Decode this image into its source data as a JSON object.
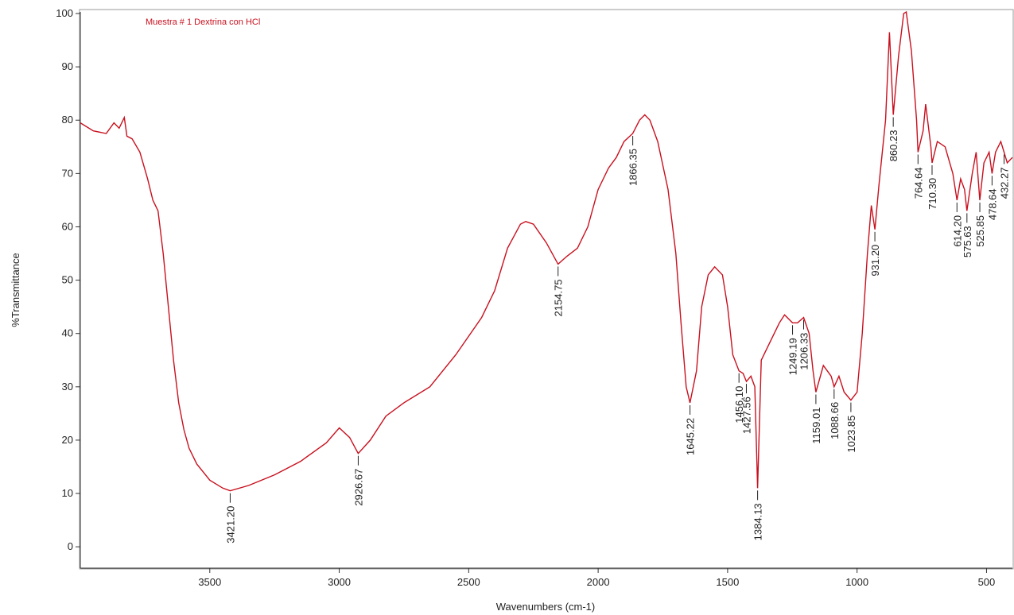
{
  "chart_data": {
    "type": "line",
    "xlabel": "Wavenumbers (cm-1)",
    "ylabel": "%Transmittance",
    "xlim": [
      4000,
      400
    ],
    "ylim": [
      -4,
      100.3
    ],
    "xticks": [
      3500,
      3000,
      2500,
      2000,
      1500,
      1000,
      500
    ],
    "yticks": [
      0,
      10,
      20,
      30,
      40,
      50,
      60,
      70,
      80,
      90,
      100
    ],
    "x": [
      4000,
      3950,
      3900,
      3870,
      3850,
      3830,
      3820,
      3800,
      3770,
      3740,
      3720,
      3700,
      3680,
      3660,
      3640,
      3620,
      3600,
      3580,
      3550,
      3500,
      3450,
      3421.2,
      3350,
      3250,
      3150,
      3050,
      3000,
      2960,
      2926.67,
      2880,
      2820,
      2750,
      2650,
      2550,
      2450,
      2400,
      2350,
      2300,
      2280,
      2250,
      2200,
      2154.75,
      2120,
      2080,
      2040,
      2000,
      1960,
      1930,
      1900,
      1866.35,
      1840,
      1820,
      1800,
      1770,
      1730,
      1700,
      1680,
      1660,
      1645.22,
      1620,
      1600,
      1575,
      1550,
      1520,
      1500,
      1480,
      1456.1,
      1440,
      1427.56,
      1410,
      1395,
      1384.13,
      1370,
      1340,
      1300,
      1280,
      1249.19,
      1230,
      1206.33,
      1185,
      1170,
      1159.01,
      1130,
      1100,
      1088.66,
      1070,
      1050,
      1023.85,
      1000,
      980,
      960,
      945,
      931.2,
      915,
      890,
      875,
      860.23,
      840,
      820,
      810,
      790,
      770,
      764.64,
      745,
      735,
      715,
      710.3,
      690,
      660,
      630,
      614.2,
      600,
      585,
      575.63,
      555,
      540,
      525.85,
      510,
      490,
      478.64,
      465,
      445,
      432.27,
      420,
      400
    ],
    "series": [
      {
        "name": "Muestra # 1 Dextrina con HCl",
        "color": "#c8101e",
        "values": [
          79.5,
          78,
          77.5,
          79.5,
          78.5,
          80.5,
          77,
          76.5,
          74,
          69,
          65,
          63,
          55,
          45,
          35,
          27,
          22,
          18.5,
          15.5,
          12.5,
          11,
          10.5,
          11.5,
          13.5,
          16,
          19.5,
          22.3,
          20.5,
          17.5,
          20,
          24.5,
          27,
          30,
          36,
          43,
          48,
          56,
          60.5,
          61,
          60.5,
          57,
          53,
          54.5,
          56,
          60,
          67,
          71,
          73,
          76,
          77.5,
          80,
          81,
          80,
          76,
          67,
          55,
          42,
          30,
          27,
          33,
          45,
          51,
          52.5,
          51,
          45,
          36,
          33,
          32.5,
          31,
          32,
          30,
          11,
          35,
          38,
          42,
          43.5,
          42,
          42,
          43,
          40,
          33,
          29,
          34,
          32,
          30,
          32,
          29,
          27.5,
          29,
          40,
          55,
          64,
          59.5,
          68,
          80,
          96.5,
          81,
          92,
          100,
          100.3,
          93,
          80,
          74,
          78,
          83,
          75,
          72,
          76,
          75,
          70,
          65,
          69,
          67,
          63,
          70,
          74,
          65,
          72,
          74,
          70,
          74,
          76,
          74,
          72,
          73
        ]
      }
    ],
    "annotations": [
      {
        "x": 3421.2,
        "label": "3421.20"
      },
      {
        "x": 2926.67,
        "label": "2926.67"
      },
      {
        "x": 2154.75,
        "label": "2154.75"
      },
      {
        "x": 1866.35,
        "label": "1866.35"
      },
      {
        "x": 1645.22,
        "label": "1645.22"
      },
      {
        "x": 1456.1,
        "label": "1456.10"
      },
      {
        "x": 1427.56,
        "label": "1427.56"
      },
      {
        "x": 1384.13,
        "label": "1384.13"
      },
      {
        "x": 1249.19,
        "label": "1249.19"
      },
      {
        "x": 1206.33,
        "label": "1206.33"
      },
      {
        "x": 1159.01,
        "label": "1159.01"
      },
      {
        "x": 1088.66,
        "label": "1088.66"
      },
      {
        "x": 1023.85,
        "label": "1023.85"
      },
      {
        "x": 931.2,
        "label": "931.20"
      },
      {
        "x": 860.23,
        "label": "860.23"
      },
      {
        "x": 764.64,
        "label": "764.64"
      },
      {
        "x": 710.3,
        "label": "710.30"
      },
      {
        "x": 614.2,
        "label": "614.20"
      },
      {
        "x": 575.63,
        "label": "575.63"
      },
      {
        "x": 525.85,
        "label": "525.85"
      },
      {
        "x": 478.64,
        "label": "478.64"
      },
      {
        "x": 432.27,
        "label": "432.27"
      }
    ]
  }
}
